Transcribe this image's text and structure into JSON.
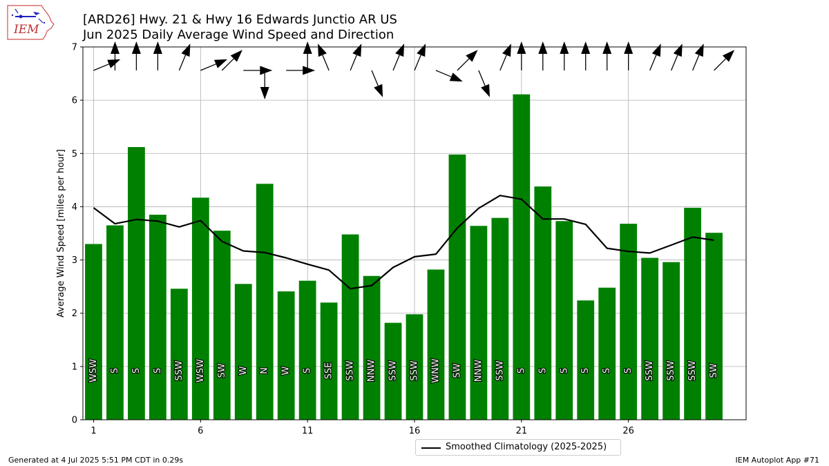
{
  "header": {
    "title": "[ARD26] Hwy. 21 & Hwy 16 Edwards Junctio AR US",
    "subtitle": "Jun 2025 Daily Average Wind Speed and Direction",
    "logo_text": "IEM"
  },
  "footer": {
    "generated": "Generated at 4 Jul 2025 5:51 PM CDT in 0.29s",
    "app": "IEM Autoplot App #71"
  },
  "legend": {
    "label": "Smoothed Climatology (2025-2025)"
  },
  "colors": {
    "bar": "#008000",
    "climatology": "#000000",
    "grid": "#b0b0b0",
    "arrow": "#000000"
  },
  "chart_data": {
    "type": "bar",
    "ylabel": "Average Wind Speed [miles per hour]",
    "xlim": [
      0.5,
      31.5
    ],
    "ylim": [
      0,
      7
    ],
    "x_ticks": [
      1,
      6,
      11,
      16,
      21,
      26
    ],
    "y_ticks": [
      0,
      1,
      2,
      3,
      4,
      5,
      6,
      7
    ],
    "grid": true,
    "legend_position": "bottom-center",
    "days": [
      1,
      2,
      3,
      4,
      5,
      6,
      7,
      8,
      9,
      10,
      11,
      12,
      13,
      14,
      15,
      16,
      17,
      18,
      19,
      20,
      21,
      22,
      23,
      24,
      25,
      26,
      27,
      28,
      29,
      30
    ],
    "values": [
      3.3,
      3.65,
      5.12,
      3.85,
      2.46,
      4.17,
      3.55,
      2.55,
      4.43,
      2.41,
      2.61,
      2.2,
      3.48,
      2.7,
      1.82,
      1.98,
      2.82,
      4.98,
      3.64,
      3.79,
      6.11,
      4.38,
      3.73,
      2.24,
      2.48,
      3.68,
      3.04,
      2.96,
      3.98,
      3.51
    ],
    "directions": [
      "WSW",
      "S",
      "S",
      "S",
      "SSW",
      "WSW",
      "SW",
      "W",
      "N",
      "W",
      "S",
      "SSE",
      "SSW",
      "NNW",
      "SSW",
      "SSW",
      "WNW",
      "SW",
      "NNW",
      "SSW",
      "S",
      "S",
      "S",
      "S",
      "S",
      "S",
      "SSW",
      "SSW",
      "SSW",
      "SW"
    ],
    "arrow_degrees": [
      247.5,
      180,
      180,
      180,
      202.5,
      247.5,
      225,
      270,
      0,
      270,
      180,
      157.5,
      202.5,
      337.5,
      202.5,
      202.5,
      292.5,
      225,
      337.5,
      202.5,
      180,
      180,
      180,
      180,
      180,
      180,
      202.5,
      202.5,
      202.5,
      225
    ],
    "climatology": [
      3.98,
      3.68,
      3.76,
      3.73,
      3.62,
      3.74,
      3.35,
      3.17,
      3.14,
      3.04,
      2.92,
      2.81,
      2.46,
      2.52,
      2.86,
      3.06,
      3.11,
      3.6,
      3.97,
      4.21,
      4.14,
      3.77,
      3.77,
      3.67,
      3.22,
      3.16,
      3.13,
      3.28,
      3.43,
      3.37
    ]
  }
}
